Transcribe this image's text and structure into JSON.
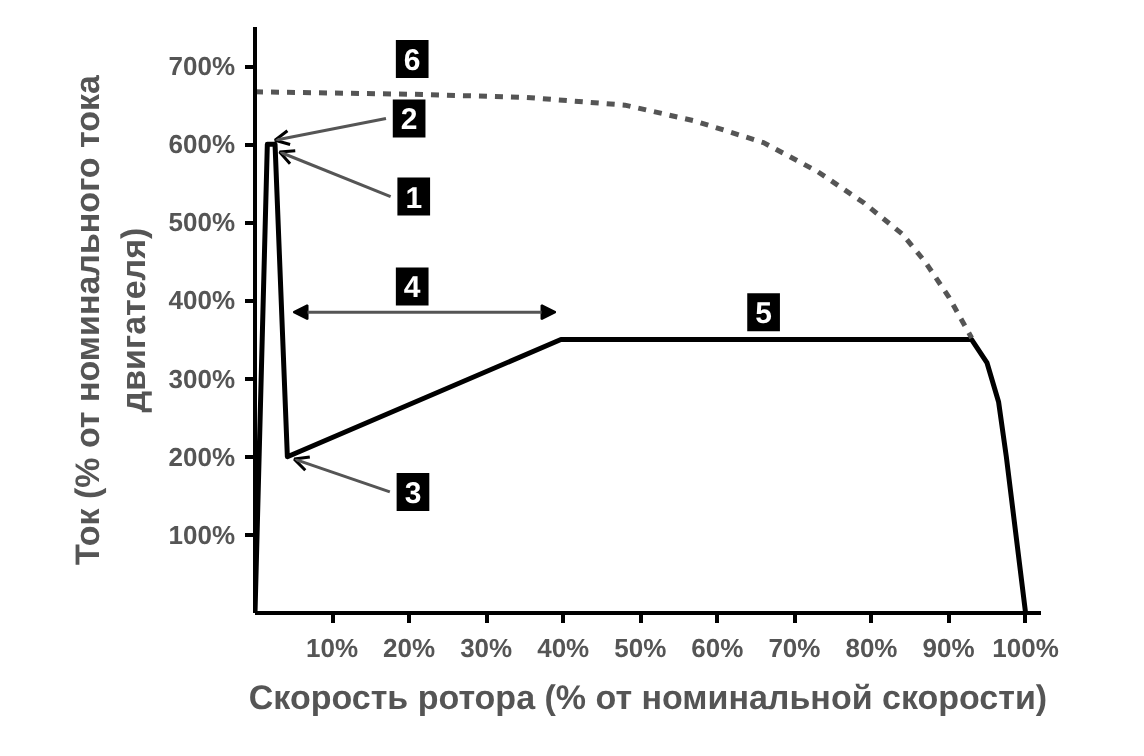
{
  "chart_data": {
    "type": "line",
    "xlabel": "Скорость ротора (% от номинальной скорости)",
    "ylabel": "Ток (% от номинального тока\nдвигателя)",
    "series": [
      {
        "color": "#000000",
        "line_style": "solid",
        "x": [
          0,
          1.6,
          2.6,
          4.2,
          39.7,
          93,
          95,
          96.5,
          97.5,
          98.5,
          100
        ],
        "values": [
          0,
          600,
          600,
          200,
          350,
          350,
          320,
          270,
          200,
          120,
          0
        ]
      },
      {
        "color": "#555555",
        "line_style": "dashed",
        "x": [
          0,
          20,
          35,
          48,
          57,
          66,
          73,
          79,
          84,
          87,
          90,
          93
        ],
        "values": [
          667,
          664,
          660,
          650,
          630,
          602,
          565,
          525,
          485,
          449,
          405,
          352
        ]
      }
    ],
    "xlim": [
      0,
      102
    ],
    "ylim": [
      0,
      750
    ],
    "xticks": [
      {
        "value": 10,
        "label": "10%"
      },
      {
        "value": 20,
        "label": "20%"
      },
      {
        "value": 30,
        "label": "30%"
      },
      {
        "value": 40,
        "label": "40%"
      },
      {
        "value": 50,
        "label": "50%"
      },
      {
        "value": 60,
        "label": "60%"
      },
      {
        "value": 70,
        "label": "70%"
      },
      {
        "value": 80,
        "label": "80%"
      },
      {
        "value": 90,
        "label": "90%"
      },
      {
        "value": 100,
        "label": "100%"
      }
    ],
    "yticks": [
      {
        "value": 100,
        "label": "100%"
      },
      {
        "value": 200,
        "label": "200%"
      },
      {
        "value": 300,
        "label": "300%"
      },
      {
        "value": 400,
        "label": "400%"
      },
      {
        "value": 500,
        "label": "500%"
      },
      {
        "value": 600,
        "label": "600%"
      },
      {
        "value": 700,
        "label": "700%"
      }
    ],
    "annotations": [
      {
        "text": "1",
        "x": 2.6,
        "y": 590
      },
      {
        "text": "2",
        "x": 2.0,
        "y": 605
      },
      {
        "text": "3",
        "x": 4.5,
        "y": 197
      },
      "4",
      {
        "text": "5",
        "x": 66,
        "y": 350
      },
      {
        "text": "6",
        "x": 20,
        "y": 666
      }
    ],
    "grid": false
  }
}
